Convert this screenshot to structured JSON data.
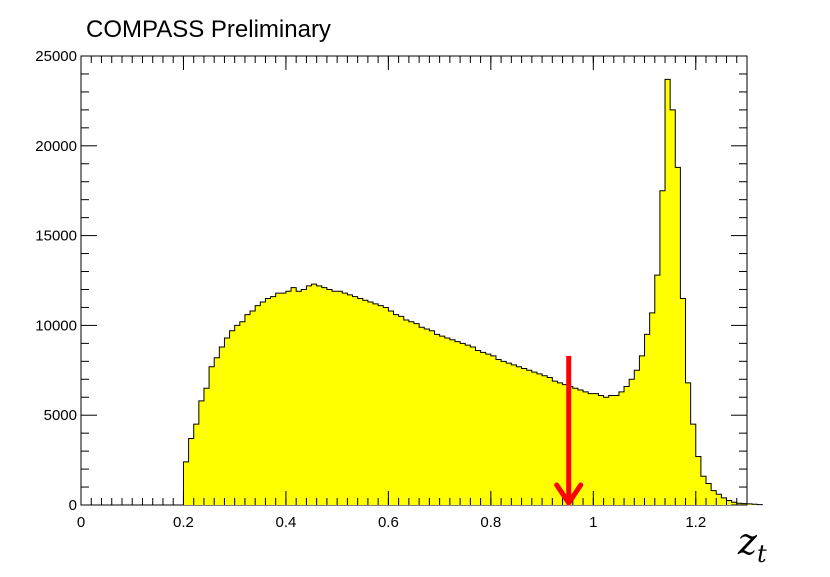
{
  "chart_data": {
    "type": "bar",
    "title": "COMPASS Preliminary",
    "xlabel": "z_t",
    "xlim": [
      0,
      1.3
    ],
    "ylim": [
      0,
      25000
    ],
    "xticks": [
      "0",
      "0.2",
      "0.4",
      "0.6",
      "0.8",
      "1",
      "1.2"
    ],
    "xtick_values": [
      0,
      0.2,
      0.4,
      0.6,
      0.8,
      1.0,
      1.2
    ],
    "yticks": [
      "0",
      "5000",
      "10000",
      "15000",
      "20000",
      "25000"
    ],
    "ytick_values": [
      0,
      5000,
      10000,
      15000,
      20000,
      25000
    ],
    "bin_width": 0.01,
    "series": [
      {
        "x_start": 0.2,
        "values": [
          2400,
          3700,
          4500,
          5800,
          6500,
          7700,
          8200,
          8800,
          9300,
          9700,
          10000,
          10200,
          10600,
          10800,
          11100,
          11300,
          11500,
          11600,
          11800,
          11800,
          11900,
          12100,
          11900,
          12000,
          12200,
          12300,
          12200,
          12100,
          12000,
          11900,
          11900,
          11800,
          11700,
          11600,
          11500,
          11400,
          11300,
          11200,
          11100,
          11000,
          10800,
          10600,
          10500,
          10300,
          10200,
          10100,
          9900,
          9800,
          9700,
          9500,
          9400,
          9300,
          9200,
          9100,
          9000,
          8900,
          8800,
          8600,
          8500,
          8400,
          8300,
          8100,
          8000,
          7900,
          7800,
          7700,
          7600,
          7500,
          7400,
          7300,
          7200,
          7100,
          6900,
          6800,
          6700,
          6600,
          6500,
          6400,
          6300,
          6200,
          6200,
          6100,
          6000,
          6100,
          6100,
          6300,
          6600,
          7000,
          7500,
          8300,
          9500,
          10700,
          12800,
          17500,
          23700,
          22000,
          18800,
          11500,
          6800,
          4500,
          2700,
          1600,
          1200,
          800,
          600,
          400,
          250,
          150,
          100,
          80,
          60,
          40,
          20
        ]
      }
    ],
    "annotations": [
      {
        "type": "arrow",
        "x": 0.952,
        "y_start": 8300,
        "y_end": 0,
        "color": "#ff0000"
      }
    ],
    "colors": {
      "fill": "#ffff00",
      "outline": "#000000",
      "arrow": "#ff0000"
    },
    "grid": false
  }
}
